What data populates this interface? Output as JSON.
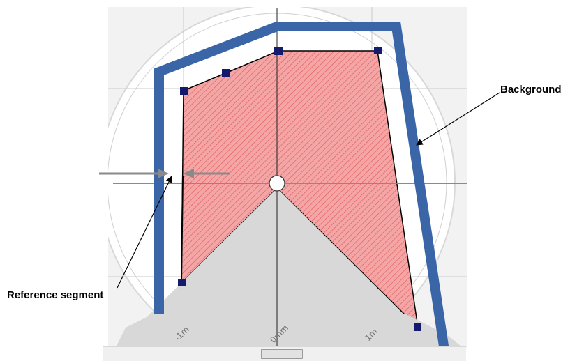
{
  "labels": {
    "background": "Background",
    "reference_segment": "Reference segment"
  },
  "axis_labels": {
    "left": "-1m",
    "center": "0mm",
    "right": "1m"
  },
  "colors": {
    "background_contour": "#3a66a8",
    "field_fill": "#f4a6a6",
    "field_hatch": "#e06060",
    "handle": "#141a6e",
    "dead_zone": "#d8d8d8",
    "grid": "#b8b8b8",
    "arrow_gray": "#8a8a8a"
  }
}
